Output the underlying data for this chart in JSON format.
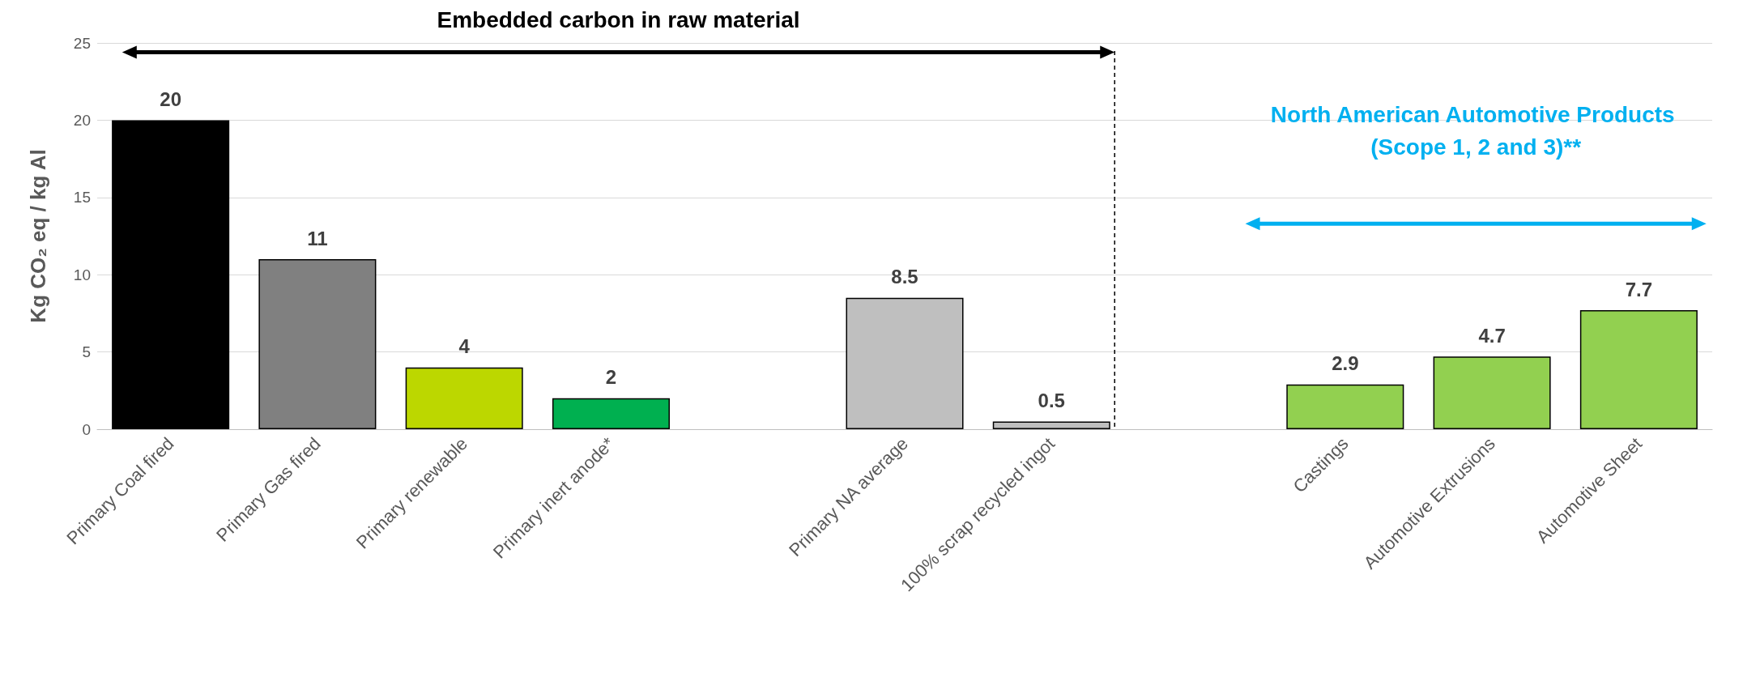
{
  "chart_data": {
    "type": "bar",
    "categories": [
      "Primary Coal fired",
      "Primary Gas fired",
      "Primary renewable",
      "Primary inert anode*",
      null,
      "Primary NA average",
      "100% scrap recycled ingot",
      null,
      "Castings",
      "Automotive Extrusions",
      "Automotive Sheet"
    ],
    "values": [
      20,
      11,
      4,
      2,
      null,
      8.5,
      0.5,
      null,
      2.9,
      4.7,
      7.7
    ],
    "colors": [
      "#000000",
      "#808080",
      "#bcd700",
      "#00b050",
      null,
      "#bfbfbf",
      "#bfbfbf",
      null,
      "#92d050",
      "#92d050",
      "#92d050"
    ],
    "ylabel": "Kg CO₂ eq / kg Al",
    "ylim": [
      0,
      25
    ],
    "yticks": [
      0,
      5,
      10,
      15,
      20,
      25
    ],
    "grid": "y",
    "data_labels": true,
    "ref_lines": [
      {
        "axis": "x",
        "value": "100% scrap recycled ingot",
        "color": "#000000",
        "line_style": "dashed"
      }
    ],
    "annotations": [
      "Embedded carbon in raw material",
      "North American Automotive Products (Scope 1, 2 and 3)**"
    ]
  }
}
